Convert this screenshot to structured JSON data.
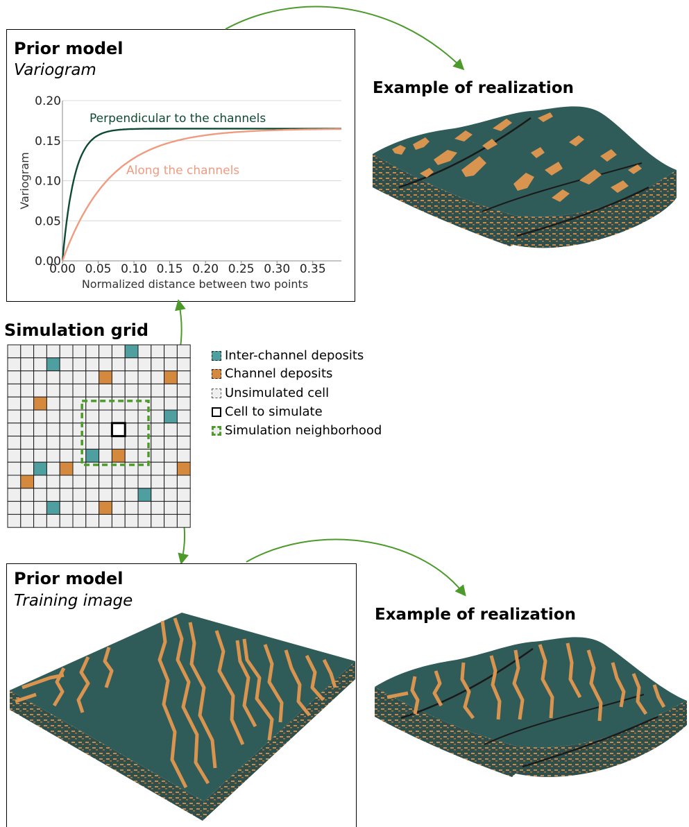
{
  "top_panel": {
    "title": "Prior model",
    "subtitle": "Variogram",
    "realization_caption": "Example of realization"
  },
  "grid_panel": {
    "title": "Simulation grid",
    "legend": [
      {
        "label": "Inter-channel deposits",
        "swatch": "teal",
        "color": "#4f9ea0"
      },
      {
        "label": "Channel deposits",
        "swatch": "orange",
        "color": "#d4893f"
      },
      {
        "label": "Unsimulated cell",
        "swatch": "dashed-gray",
        "color": "#9a9a9a"
      },
      {
        "label": "Cell to simulate",
        "swatch": "black-outline",
        "color": "#000000"
      },
      {
        "label": "Simulation neighborhood",
        "swatch": "green-dashed",
        "color": "#4b9a2a"
      }
    ]
  },
  "bottom_panel": {
    "title": "Prior model",
    "subtitle": "Training image",
    "realization_caption": "Example of realization"
  },
  "colors": {
    "teal": "#4f9ea0",
    "orange": "#d4893f",
    "green": "#4b9a2a",
    "dark_green_curve": "#0e4a33",
    "salmon_curve": "#f09b80",
    "surface": "#2f5b58",
    "cell_bg": "#efefef"
  },
  "chart_data": {
    "type": "line",
    "xlabel": "Normalized distance between two points",
    "ylabel": "Variogram",
    "xlim": [
      0,
      0.39
    ],
    "ylim": [
      0,
      0.2
    ],
    "x_ticks": [
      "0.00",
      "0.05",
      "0.10",
      "0.15",
      "0.20",
      "0.25",
      "0.30",
      "0.35"
    ],
    "y_ticks": [
      "0.00",
      "0.05",
      "0.10",
      "0.15",
      "0.20"
    ],
    "grid": true,
    "series": [
      {
        "name": "Perpendicular to the channels",
        "sill": 0.165,
        "range": 0.05,
        "model": "exponential",
        "x": [
          0,
          0.01,
          0.02,
          0.03,
          0.04,
          0.05,
          0.06,
          0.08,
          0.1,
          0.15,
          0.2,
          0.3,
          0.39
        ],
        "y": [
          0,
          0.074,
          0.115,
          0.137,
          0.15,
          0.157,
          0.161,
          0.164,
          0.165,
          0.165,
          0.165,
          0.165,
          0.165
        ]
      },
      {
        "name": "Along the channels",
        "sill": 0.165,
        "range": 0.2,
        "model": "exponential",
        "x": [
          0,
          0.02,
          0.05,
          0.08,
          0.1,
          0.15,
          0.2,
          0.25,
          0.3,
          0.35,
          0.39
        ],
        "y": [
          0,
          0.043,
          0.087,
          0.115,
          0.128,
          0.148,
          0.157,
          0.161,
          0.163,
          0.164,
          0.165
        ]
      }
    ]
  }
}
